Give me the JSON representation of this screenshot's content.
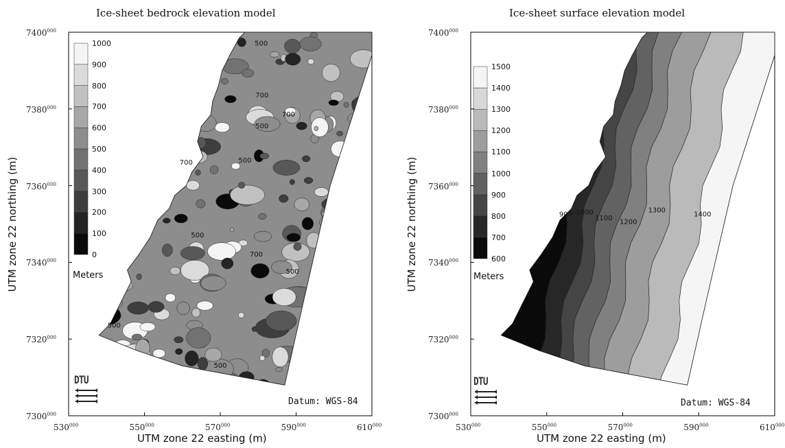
{
  "chart_data": [
    {
      "type": "heatmap",
      "title": "Ice-sheet bedrock elevation model",
      "xlabel": "UTM zone 22 easting (m)",
      "ylabel": "UTM zone 22 northing (m)",
      "xlim": [
        530000,
        610000
      ],
      "ylim": [
        7300000,
        7400000
      ],
      "x_ticks": [
        530000,
        550000,
        570000,
        590000,
        610000
      ],
      "y_ticks": [
        7300000,
        7320000,
        7340000,
        7360000,
        7380000,
        7400000
      ],
      "colorbar": {
        "title": "Meters",
        "levels": [
          0,
          100,
          200,
          300,
          400,
          500,
          600,
          700,
          800,
          900,
          1000
        ]
      },
      "contour_labels": [
        {
          "text": "500",
          "x": 580800,
          "y": 7396500
        },
        {
          "text": "700",
          "x": 581000,
          "y": 7383000
        },
        {
          "text": "500",
          "x": 581000,
          "y": 7375000
        },
        {
          "text": "700",
          "x": 588000,
          "y": 7378000
        },
        {
          "text": "700",
          "x": 561000,
          "y": 7365500
        },
        {
          "text": "500",
          "x": 576500,
          "y": 7366000
        },
        {
          "text": "500",
          "x": 564000,
          "y": 7346500
        },
        {
          "text": "700",
          "x": 579500,
          "y": 7341500
        },
        {
          "text": "500",
          "x": 589000,
          "y": 7337000
        },
        {
          "text": "500",
          "x": 542000,
          "y": 7323000
        },
        {
          "text": "500",
          "x": 570000,
          "y": 7312500
        }
      ],
      "datum": "Datum: WGS-84",
      "logo": "DTU"
    },
    {
      "type": "heatmap",
      "title": "Ice-sheet surface elevation model",
      "xlabel": "UTM zone 22 easting (m)",
      "ylabel": "UTM zone 22 northing (m)",
      "xlim": [
        530000,
        610000
      ],
      "ylim": [
        7300000,
        7400000
      ],
      "x_ticks": [
        530000,
        550000,
        570000,
        590000,
        610000
      ],
      "y_ticks": [
        7300000,
        7320000,
        7340000,
        7360000,
        7380000,
        7400000
      ],
      "colorbar": {
        "title": "Meters",
        "levels": [
          600,
          700,
          800,
          900,
          1000,
          1100,
          1200,
          1300,
          1400,
          1500
        ]
      },
      "contour_labels": [
        {
          "text": "900",
          "x": 555000,
          "y": 7352000
        },
        {
          "text": "1000",
          "x": 560000,
          "y": 7352500
        },
        {
          "text": "1100",
          "x": 565000,
          "y": 7351000
        },
        {
          "text": "1200",
          "x": 571500,
          "y": 7350000
        },
        {
          "text": "1300",
          "x": 579000,
          "y": 7353000
        },
        {
          "text": "1400",
          "x": 591000,
          "y": 7352000
        }
      ],
      "datum": "Datum: WGS-84",
      "logo": "DTU"
    }
  ],
  "colors": {
    "frame": "#000000",
    "background": "#ffffff"
  }
}
